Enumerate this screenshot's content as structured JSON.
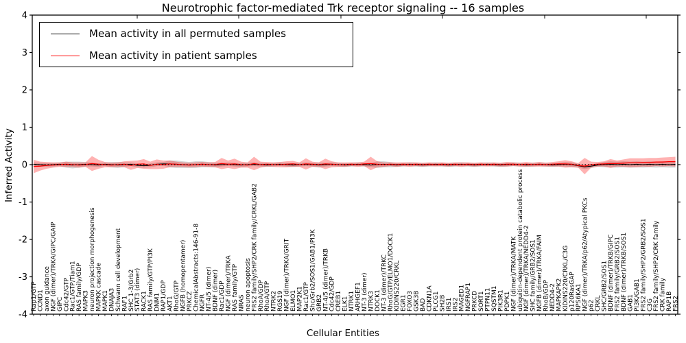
{
  "title": "Neurotrophic factor-mediated Trk receptor signaling -- 16 samples",
  "axes": {
    "xlabel": "Cellular Entities",
    "ylabel": "Inferred Activity",
    "yticks": [
      4,
      3,
      2,
      1,
      0,
      -1,
      -2,
      -3,
      -4
    ],
    "top_tick_x": [
      200,
      348,
      497,
      645,
      794,
      942
    ]
  },
  "legend": {
    "items": [
      {
        "label": "Mean activity in all permuted samples",
        "color": "#000000"
      },
      {
        "label": "Mean activity in patient samples",
        "color": "#ff0000"
      }
    ],
    "position": "upper-left"
  },
  "colors": {
    "permuted_line": "#000000",
    "patient_line": "#ff0000",
    "permuted_band": "rgba(120,120,120,0.30)",
    "patient_band": "rgba(255,0,0,0.30)",
    "zero_line": "#000000"
  },
  "chart_data": {
    "type": "line",
    "title": "Neurotrophic factor-mediated Trk receptor signaling -- 16 samples",
    "xlabel": "Cellular Entities",
    "ylabel": "Inferred Activity",
    "ylim": [
      -4,
      4
    ],
    "grid": false,
    "legend_position": "upper-left",
    "zero_line": {
      "style": "dotted",
      "color": "#000000",
      "y": 0
    },
    "categories": [
      "Rap1/GTP",
      "CCND1",
      "axon guidance",
      "NGF (dimer)/TRKA/GIPC/GAIP",
      "GIPC",
      "Cdc42/GTP",
      "Rac1/GTP/Tiam1",
      "RAS family/GDP",
      "MAPK3",
      "neuron projection morphogenesis",
      "MAPKK cascade",
      "MAPK1",
      "DNAJA3",
      "Schwann cell development",
      "RAF1",
      "SHC 1-3/Grb2",
      "STAT3 (dimer)",
      "RACK1",
      "RAS family/GTP/PI3K",
      "DNM1",
      "RAP1/GDP",
      "AKT1",
      "RhoG/GTP",
      "NGFB (homopentamer)",
      "PRKCZ",
      "ChemicalAbstracts:146-91-8",
      "NGFR",
      "NT-4/5 (dimer)",
      "BDNF (dimer)",
      "Rac1/GDP",
      "NGF (dimer)/TRKA",
      "RAS family/GTP",
      "NRAS",
      "neuron apoptosis",
      "FRS2 family/SHP2/CRK family/CRKL/GAB2",
      "RhoA/GDP",
      "RhoA/GTP",
      "NTRK2",
      "RGS19",
      "NGF (dimer)/TRKA/GRIT",
      "ELMO1",
      "MAP2K1",
      "Rac1/GTP",
      "Shc/Grb2/SOS1/GAB1/PI3K",
      "GRB2",
      "NT-4/5 (dimer)/TRKB",
      "Cdc42/GDP",
      "CREB1",
      "ELK1",
      "NTRK1",
      "ARHGEF1",
      "NT-3 (dimer)",
      "NTRK3",
      "DOCK1",
      "NT-3 (dimer)/TRKC",
      "RhoG/GTP/ELMO1/DOCK1",
      "KIDINS220/CRKL",
      "EGR1",
      "FOXO3",
      "GSK3B",
      "BAD",
      "CDKN1A",
      "PLCG1",
      "SH2B",
      "IRS1",
      "IRS2",
      "MAGED1",
      "NGFRAP1",
      "PRKCD",
      "SORT1",
      "PTPN11",
      "SQSTM1",
      "PIK3R1",
      "PDPK1",
      "NGF (dimer)/TRKA/MATK",
      "ubiquitin-dependent protein catabolic process",
      "NGF (dimer)/TRKA/NEDD4-2",
      "SHC family/GRB2/SOS1",
      "NGFB (dimer)/TRKA/FAIM",
      "RhoB/GDP",
      "NEDD4-2",
      "MAPKAPK2",
      "KIDINS220/CRKL/C3G",
      "p120RasGAP",
      "RPS6KA1",
      "NGF (dimer)/TRKA/p62/Atypical PKCs",
      "p62",
      "CRKL",
      "SHC/GRB2/SOS1",
      "BDNF (dimer)/TRKB/GIPC",
      "FRS2 family/GRB2/SOS1",
      "BDNF (dimer)/TRKB/SOS1",
      "GAB1",
      "PI3K/GAB1",
      "FRS2 family/SHP2/GRB2/SOS1",
      "C3G",
      "FRS2 family/SHP2/CRK family",
      "CRK family",
      "RAP1B",
      "FRS2"
    ],
    "series": [
      {
        "name": "Mean activity in all permuted samples",
        "color": "#000000",
        "values": [
          0.01,
          0,
          -0.01,
          0,
          0.01,
          0,
          -0.01,
          0,
          0.01,
          0,
          -0.01,
          0.01,
          0,
          -0.01,
          0,
          0.01,
          -0.02,
          -0.03,
          -0.02,
          0.01,
          0.02,
          0.02,
          0.01,
          0,
          -0.01,
          0,
          0.01,
          0,
          -0.01,
          0,
          0.01,
          0,
          -0.01,
          0,
          0.01,
          0,
          -0.01,
          0,
          0.01,
          0,
          -0.01,
          0,
          0.01,
          0,
          -0.01,
          0,
          0.01,
          0,
          -0.01,
          0,
          0.01,
          0,
          -0.01,
          0,
          0.01,
          0,
          -0.01,
          0,
          0.01,
          0,
          -0.01,
          0,
          0.01,
          0,
          -0.01,
          0,
          0.01,
          0,
          -0.01,
          0,
          0.01,
          0,
          -0.01,
          0,
          0.01,
          0,
          -0.01,
          0,
          0.01,
          0,
          -0.01,
          0,
          0.01,
          0,
          -0.03,
          -0.06,
          -0.04,
          -0.01,
          0,
          0.01,
          0,
          0.01,
          0,
          0.01,
          0,
          0.01,
          0,
          0.01,
          0,
          0.01
        ]
      },
      {
        "name": "Mean activity in patient samples",
        "color": "#ff0000",
        "values": [
          -0.05,
          -0.04,
          -0.02,
          -0.01,
          0,
          0.01,
          0,
          -0.01,
          0,
          0.03,
          0.01,
          0,
          -0.01,
          0,
          0.01,
          -0.02,
          0.01,
          0.02,
          -0.02,
          0.01,
          0,
          0.02,
          0.01,
          0,
          -0.01,
          0,
          0.01,
          0,
          0,
          0.03,
          0.01,
          0.02,
          0,
          -0.01,
          0.03,
          0,
          0.01,
          0,
          0,
          0.01,
          0.02,
          0,
          0.02,
          0.01,
          0,
          0.02,
          0.01,
          0,
          0,
          0.01,
          0,
          0.02,
          0.03,
          0.01,
          0,
          0.01,
          0,
          0.01,
          0,
          0.01,
          0,
          0.01,
          0,
          0.01,
          0,
          0.01,
          0,
          0.01,
          0,
          0.01,
          0,
          0.01,
          0,
          0.01,
          0.01,
          0,
          0.01,
          0,
          0.01,
          0,
          0.01,
          0.02,
          0.02,
          0.01,
          -0.02,
          -0.04,
          0,
          0.01,
          0.02,
          0.03,
          0.03,
          0.04,
          0.05,
          0.05,
          0.06,
          0.06,
          0.07,
          0.07,
          0.08,
          0.08
        ]
      }
    ],
    "bands": [
      {
        "name": "permuted-samples-range",
        "series": "Mean activity in all permuted samples",
        "color": "rgba(120,120,120,0.30)",
        "half_widths": [
          0.05,
          0.05,
          0.05,
          0.05,
          0.05,
          0.08,
          0.09,
          0.08,
          0.06,
          0.05,
          0.05,
          0.05,
          0.07,
          0.08,
          0.06,
          0.05,
          0.05,
          0.05,
          0.05,
          0.05,
          0.05,
          0.09,
          0.1,
          0.09,
          0.08,
          0.09,
          0.08,
          0.07,
          0.06,
          0.05,
          0.05,
          0.05,
          0.05,
          0.05,
          0.05,
          0.05,
          0.05,
          0.05,
          0.05,
          0.05,
          0.05,
          0.05,
          0.05,
          0.05,
          0.07,
          0.05,
          0.05,
          0.05,
          0.05,
          0.05,
          0.05,
          0.05,
          0.05,
          0.09,
          0.08,
          0.07,
          0.05,
          0.05,
          0.05,
          0.05,
          0.05,
          0.05,
          0.05,
          0.05,
          0.05,
          0.05,
          0.05,
          0.05,
          0.05,
          0.05,
          0.05,
          0.05,
          0.05,
          0.05,
          0.05,
          0.05,
          0.05,
          0.05,
          0.05,
          0.05,
          0.05,
          0.05,
          0.06,
          0.06,
          0.05,
          0.06,
          0.05,
          0.05,
          0.07,
          0.08,
          0.08,
          0.08,
          0.08,
          0.08,
          0.08,
          0.08,
          0.08,
          0.08,
          0.08,
          0.09
        ]
      },
      {
        "name": "patient-samples-range",
        "series": "Mean activity in patient samples",
        "color": "rgba(255,0,0,0.30)",
        "half_widths": [
          0.18,
          0.12,
          0.09,
          0.07,
          0.06,
          0.07,
          0.06,
          0.07,
          0.06,
          0.2,
          0.12,
          0.07,
          0.06,
          0.06,
          0.08,
          0.12,
          0.1,
          0.13,
          0.1,
          0.13,
          0.11,
          0.09,
          0.07,
          0.06,
          0.06,
          0.06,
          0.06,
          0.06,
          0.07,
          0.15,
          0.1,
          0.14,
          0.08,
          0.07,
          0.18,
          0.08,
          0.06,
          0.06,
          0.07,
          0.08,
          0.08,
          0.06,
          0.15,
          0.07,
          0.06,
          0.14,
          0.08,
          0.06,
          0.06,
          0.05,
          0.06,
          0.06,
          0.18,
          0.08,
          0.06,
          0.05,
          0.06,
          0.05,
          0.06,
          0.05,
          0.05,
          0.05,
          0.05,
          0.05,
          0.05,
          0.05,
          0.06,
          0.05,
          0.05,
          0.05,
          0.05,
          0.05,
          0.05,
          0.06,
          0.05,
          0.05,
          0.06,
          0.05,
          0.06,
          0.05,
          0.06,
          0.07,
          0.1,
          0.08,
          0.06,
          0.22,
          0.08,
          0.06,
          0.07,
          0.12,
          0.08,
          0.1,
          0.12,
          0.12,
          0.11,
          0.12,
          0.11,
          0.12,
          0.12,
          0.13
        ]
      }
    ]
  }
}
